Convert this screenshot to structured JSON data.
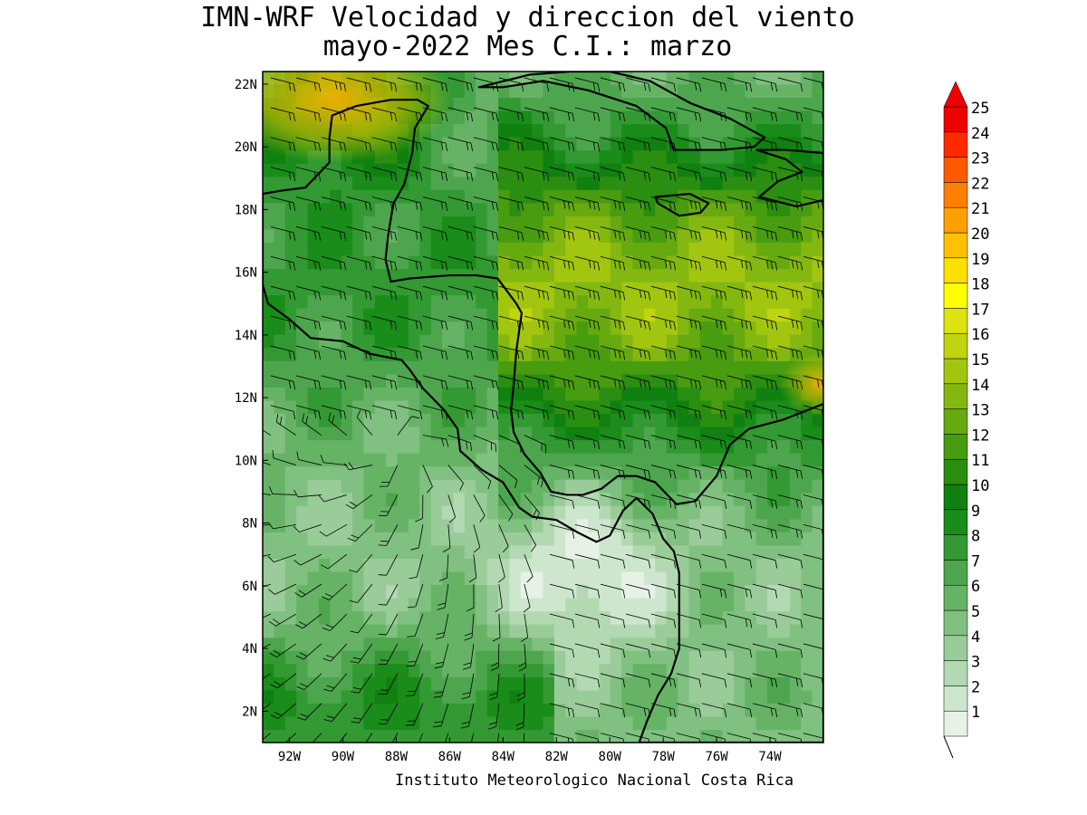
{
  "title_line1": "IMN-WRF Velocidad y direccion del viento",
  "title_line2": "mayo-2022 Mes C.I.: marzo",
  "credit": "Instituto Meteorologico Nacional Costa Rica",
  "map": {
    "lon_range": [
      -93,
      -72
    ],
    "lat_range": [
      1,
      22.4
    ],
    "lon_ticks": [
      {
        "value": -92,
        "label": "92W"
      },
      {
        "value": -90,
        "label": "90W"
      },
      {
        "value": -88,
        "label": "88W"
      },
      {
        "value": -86,
        "label": "86W"
      },
      {
        "value": -84,
        "label": "84W"
      },
      {
        "value": -82,
        "label": "82W"
      },
      {
        "value": -80,
        "label": "80W"
      },
      {
        "value": -78,
        "label": "78W"
      },
      {
        "value": -76,
        "label": "76W"
      },
      {
        "value": -74,
        "label": "74W"
      }
    ],
    "lat_ticks": [
      {
        "value": 2,
        "label": "2N"
      },
      {
        "value": 4,
        "label": "4N"
      },
      {
        "value": 6,
        "label": "6N"
      },
      {
        "value": 8,
        "label": "8N"
      },
      {
        "value": 10,
        "label": "10N"
      },
      {
        "value": 12,
        "label": "12N"
      },
      {
        "value": 14,
        "label": "14N"
      },
      {
        "value": 16,
        "label": "16N"
      },
      {
        "value": 18,
        "label": "18N"
      },
      {
        "value": 20,
        "label": "20N"
      },
      {
        "value": 22,
        "label": "22N"
      }
    ]
  },
  "colorbar": {
    "levels": [
      "1",
      "2",
      "3",
      "4",
      "5",
      "6",
      "7",
      "8",
      "9",
      "10",
      "11",
      "12",
      "13",
      "14",
      "15",
      "16",
      "17",
      "18",
      "19",
      "20",
      "21",
      "22",
      "23",
      "24",
      "25"
    ],
    "colors": [
      "#ffffff",
      "#e6f2e6",
      "#cde6cd",
      "#b3d9b3",
      "#99cc99",
      "#80c080",
      "#66b366",
      "#4da64d",
      "#339933",
      "#1a8c1a",
      "#108010",
      "#2a8e10",
      "#489c10",
      "#66aa10",
      "#84b810",
      "#a2c610",
      "#c0d410",
      "#dee210",
      "#ffff00",
      "#ffe000",
      "#ffc000",
      "#ffa000",
      "#ff8000",
      "#ff5a00",
      "#ff2a00",
      "#ee0000"
    ]
  },
  "units_label": "",
  "land_polygons": [
    {
      "name": "Central America",
      "points": [
        [
          -92.8,
          15.0
        ],
        [
          -92.0,
          14.5
        ],
        [
          -91.2,
          13.9
        ],
        [
          -90.0,
          13.8
        ],
        [
          -89.0,
          13.4
        ],
        [
          -87.8,
          13.2
        ],
        [
          -87.5,
          12.9
        ],
        [
          -87.0,
          12.3
        ],
        [
          -86.2,
          11.6
        ],
        [
          -85.7,
          11.0
        ],
        [
          -85.6,
          10.3
        ],
        [
          -84.8,
          9.7
        ],
        [
          -84.0,
          9.3
        ],
        [
          -83.4,
          8.5
        ],
        [
          -82.9,
          8.2
        ],
        [
          -82.0,
          8.1
        ],
        [
          -81.2,
          7.7
        ],
        [
          -80.5,
          7.4
        ],
        [
          -80.0,
          7.6
        ],
        [
          -79.5,
          8.4
        ],
        [
          -79.0,
          8.8
        ],
        [
          -78.4,
          8.3
        ],
        [
          -78.0,
          7.5
        ],
        [
          -77.6,
          7.1
        ],
        [
          -77.4,
          6.4
        ],
        [
          -77.4,
          4.0
        ],
        [
          -77.7,
          3.2
        ],
        [
          -78.2,
          2.5
        ],
        [
          -78.6,
          1.7
        ],
        [
          -78.9,
          1.0
        ],
        [
          -72,
          1.0
        ],
        [
          -72,
          11.8
        ],
        [
          -73.5,
          11.3
        ],
        [
          -74.8,
          11.0
        ],
        [
          -75.5,
          10.5
        ],
        [
          -76.0,
          9.5
        ],
        [
          -76.8,
          8.7
        ],
        [
          -77.5,
          8.6
        ],
        [
          -78.3,
          9.3
        ],
        [
          -79.0,
          9.5
        ],
        [
          -79.7,
          9.5
        ],
        [
          -80.3,
          9.1
        ],
        [
          -81.0,
          8.9
        ],
        [
          -81.6,
          8.9
        ],
        [
          -82.2,
          9.0
        ],
        [
          -82.6,
          9.6
        ],
        [
          -83.2,
          10.2
        ],
        [
          -83.6,
          10.9
        ],
        [
          -83.7,
          11.6
        ],
        [
          -83.6,
          12.4
        ],
        [
          -83.5,
          13.5
        ],
        [
          -83.3,
          14.7
        ],
        [
          -83.5,
          15.0
        ],
        [
          -84.2,
          15.8
        ],
        [
          -85.0,
          15.9
        ],
        [
          -86.0,
          15.9
        ],
        [
          -87.5,
          15.8
        ],
        [
          -88.2,
          15.7
        ],
        [
          -88.4,
          16.4
        ],
        [
          -88.3,
          17.2
        ],
        [
          -88.1,
          18.2
        ],
        [
          -87.7,
          18.8
        ],
        [
          -87.4,
          19.8
        ],
        [
          -87.3,
          20.6
        ],
        [
          -86.8,
          21.3
        ],
        [
          -87.2,
          21.5
        ],
        [
          -88.2,
          21.5
        ],
        [
          -89.5,
          21.3
        ],
        [
          -90.4,
          21.0
        ],
        [
          -90.5,
          20.3
        ],
        [
          -90.5,
          19.5
        ],
        [
          -91.4,
          18.7
        ],
        [
          -92.3,
          18.6
        ],
        [
          -93,
          18.5
        ],
        [
          -93,
          15.6
        ]
      ]
    },
    {
      "name": "Cuba",
      "points": [
        [
          -84.9,
          21.9
        ],
        [
          -83.0,
          22.3
        ],
        [
          -81.5,
          22.4
        ],
        [
          -80.0,
          22.4
        ],
        [
          -78.5,
          22.1
        ],
        [
          -77.0,
          21.4
        ],
        [
          -75.5,
          20.9
        ],
        [
          -74.2,
          20.3
        ],
        [
          -74.6,
          20.0
        ],
        [
          -75.8,
          19.9
        ],
        [
          -77.6,
          19.9
        ],
        [
          -77.9,
          20.6
        ],
        [
          -79.0,
          21.3
        ],
        [
          -80.8,
          21.8
        ],
        [
          -82.5,
          22.1
        ],
        [
          -84.0,
          21.9
        ]
      ]
    },
    {
      "name": "Jamaica",
      "points": [
        [
          -78.3,
          18.4
        ],
        [
          -77.0,
          18.5
        ],
        [
          -76.3,
          18.2
        ],
        [
          -76.6,
          17.9
        ],
        [
          -77.4,
          17.8
        ],
        [
          -78.2,
          18.2
        ]
      ]
    },
    {
      "name": "Hispaniola",
      "points": [
        [
          -74.5,
          19.9
        ],
        [
          -73.4,
          19.9
        ],
        [
          -72,
          19.8
        ],
        [
          -72,
          18.3
        ],
        [
          -73.0,
          18.1
        ],
        [
          -74.4,
          18.4
        ],
        [
          -73.7,
          18.9
        ],
        [
          -72.8,
          19.2
        ],
        [
          -73.4,
          19.6
        ]
      ]
    }
  ]
}
